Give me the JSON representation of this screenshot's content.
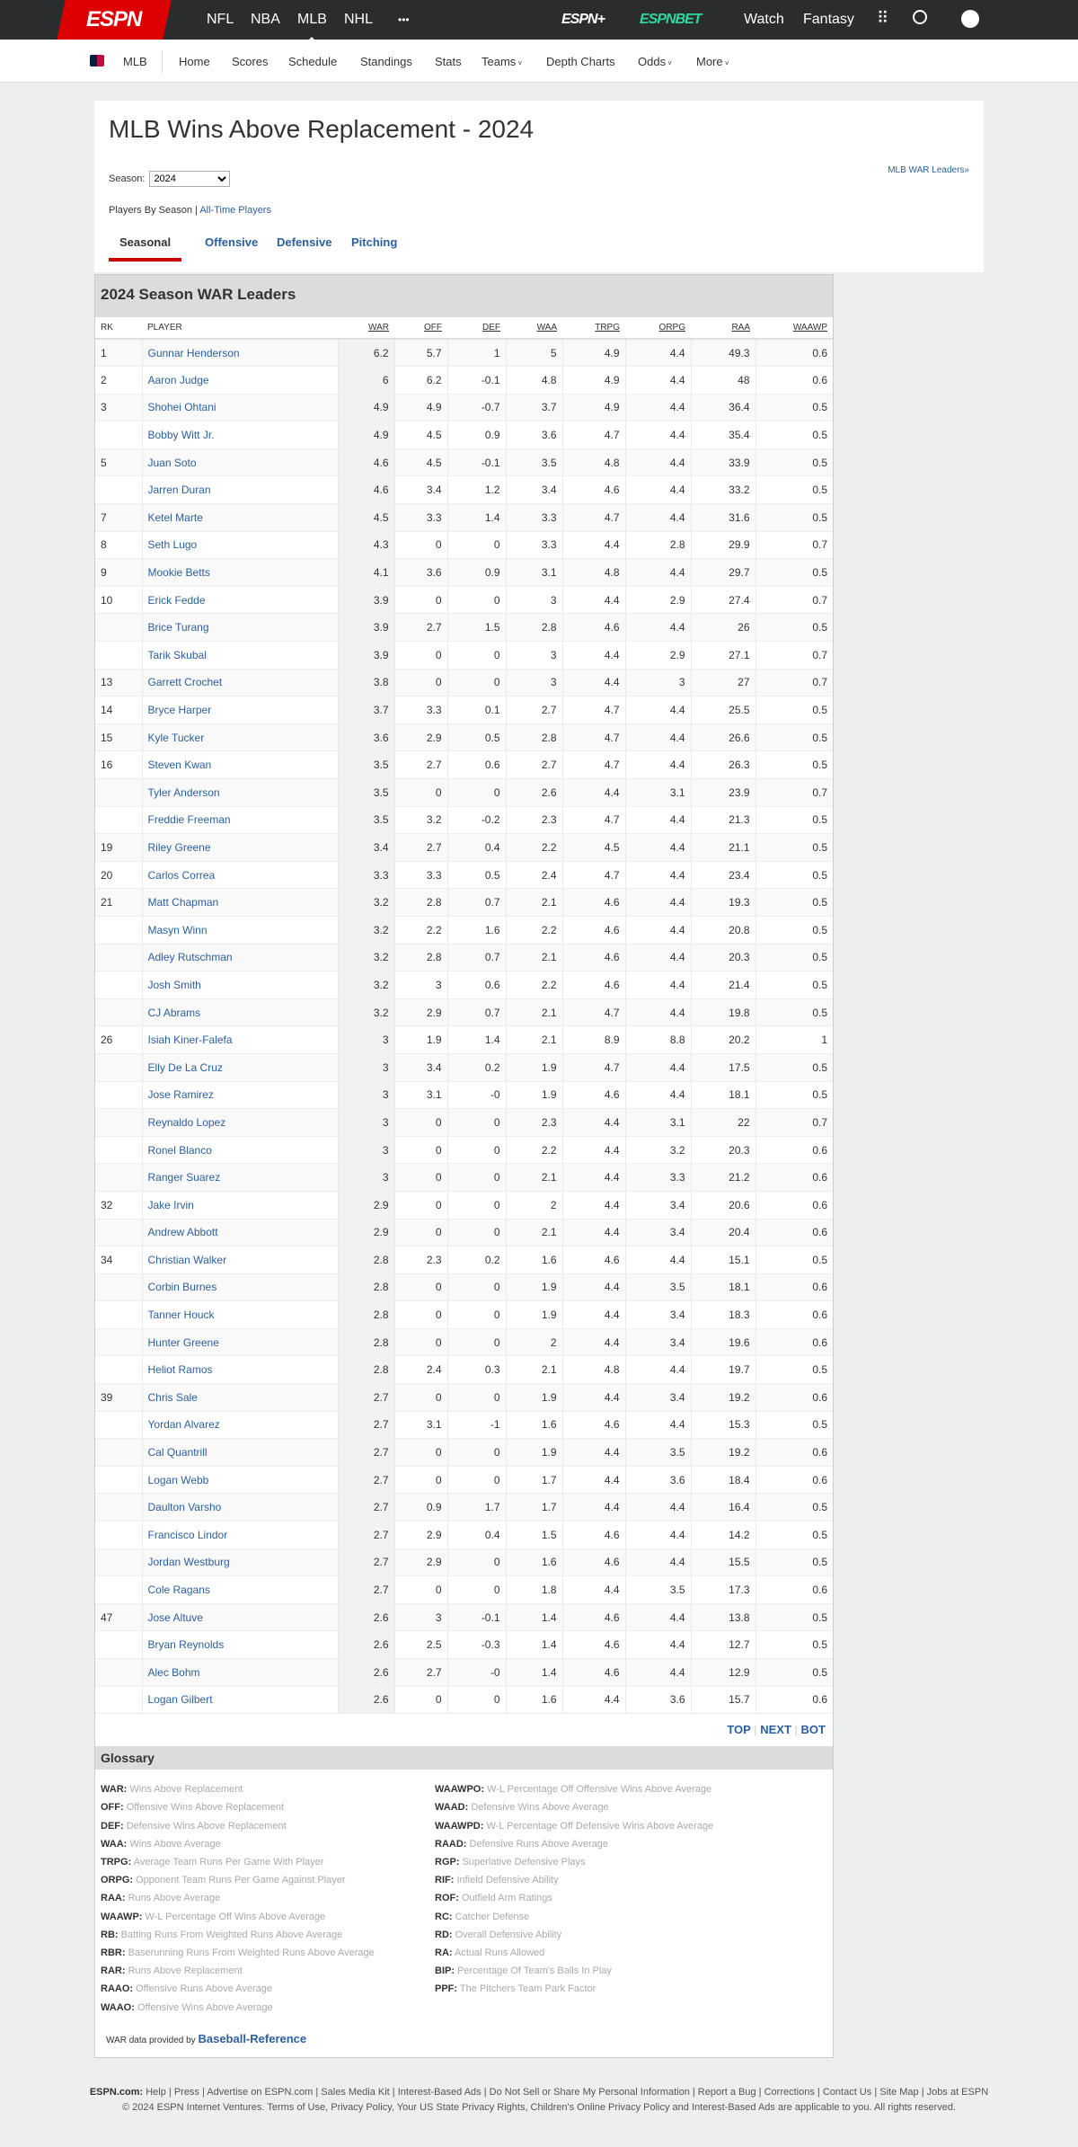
{
  "topnav": {
    "logo": "ESPN",
    "items": [
      "NFL",
      "NBA",
      "MLB",
      "NHL"
    ],
    "more": "•••",
    "espn_plus": "ESPN+",
    "espn_bet": "ESPNBET",
    "watch": "Watch",
    "fantasy": "Fantasy"
  },
  "subnav": {
    "league": "MLB",
    "items": [
      "Home",
      "Scores",
      "Schedule",
      "Standings",
      "Stats"
    ],
    "teams": "Teams",
    "depth": "Depth Charts",
    "odds": "Odds",
    "more": "More"
  },
  "page": {
    "title": "MLB Wins Above Replacement - 2024",
    "season_label": "Season:",
    "season_value": "2024",
    "war_leaders_link": "MLB WAR Leaders»",
    "players_by_season": "Players By Season",
    "sep": "|",
    "all_time": "All-Time Players",
    "tabs": [
      "Seasonal",
      "Offensive",
      "Defensive",
      "Pitching"
    ]
  },
  "table": {
    "title": "2024 Season WAR Leaders",
    "columns": [
      "RK",
      "PLAYER",
      "WAR",
      "OFF",
      "DEF",
      "WAA",
      "TRPG",
      "ORPG",
      "RAA",
      "WAAWP"
    ],
    "rows": [
      [
        "1",
        "Gunnar Henderson",
        "6.2",
        "5.7",
        "1",
        "5",
        "4.9",
        "4.4",
        "49.3",
        "0.6"
      ],
      [
        "2",
        "Aaron Judge",
        "6",
        "6.2",
        "-0.1",
        "4.8",
        "4.9",
        "4.4",
        "48",
        "0.6"
      ],
      [
        "3",
        "Shohei Ohtani",
        "4.9",
        "4.9",
        "-0.7",
        "3.7",
        "4.9",
        "4.4",
        "36.4",
        "0.5"
      ],
      [
        "",
        "Bobby Witt Jr.",
        "4.9",
        "4.5",
        "0.9",
        "3.6",
        "4.7",
        "4.4",
        "35.4",
        "0.5"
      ],
      [
        "5",
        "Juan Soto",
        "4.6",
        "4.5",
        "-0.1",
        "3.5",
        "4.8",
        "4.4",
        "33.9",
        "0.5"
      ],
      [
        "",
        "Jarren Duran",
        "4.6",
        "3.4",
        "1.2",
        "3.4",
        "4.6",
        "4.4",
        "33.2",
        "0.5"
      ],
      [
        "7",
        "Ketel Marte",
        "4.5",
        "3.3",
        "1.4",
        "3.3",
        "4.7",
        "4.4",
        "31.6",
        "0.5"
      ],
      [
        "8",
        "Seth Lugo",
        "4.3",
        "0",
        "0",
        "3.3",
        "4.4",
        "2.8",
        "29.9",
        "0.7"
      ],
      [
        "9",
        "Mookie Betts",
        "4.1",
        "3.6",
        "0.9",
        "3.1",
        "4.8",
        "4.4",
        "29.7",
        "0.5"
      ],
      [
        "10",
        "Erick Fedde",
        "3.9",
        "0",
        "0",
        "3",
        "4.4",
        "2.9",
        "27.4",
        "0.7"
      ],
      [
        "",
        "Brice Turang",
        "3.9",
        "2.7",
        "1.5",
        "2.8",
        "4.6",
        "4.4",
        "26",
        "0.5"
      ],
      [
        "",
        "Tarik Skubal",
        "3.9",
        "0",
        "0",
        "3",
        "4.4",
        "2.9",
        "27.1",
        "0.7"
      ],
      [
        "13",
        "Garrett Crochet",
        "3.8",
        "0",
        "0",
        "3",
        "4.4",
        "3",
        "27",
        "0.7"
      ],
      [
        "14",
        "Bryce Harper",
        "3.7",
        "3.3",
        "0.1",
        "2.7",
        "4.7",
        "4.4",
        "25.5",
        "0.5"
      ],
      [
        "15",
        "Kyle Tucker",
        "3.6",
        "2.9",
        "0.5",
        "2.8",
        "4.7",
        "4.4",
        "26.6",
        "0.5"
      ],
      [
        "16",
        "Steven Kwan",
        "3.5",
        "2.7",
        "0.6",
        "2.7",
        "4.7",
        "4.4",
        "26.3",
        "0.5"
      ],
      [
        "",
        "Tyler Anderson",
        "3.5",
        "0",
        "0",
        "2.6",
        "4.4",
        "3.1",
        "23.9",
        "0.7"
      ],
      [
        "",
        "Freddie Freeman",
        "3.5",
        "3.2",
        "-0.2",
        "2.3",
        "4.7",
        "4.4",
        "21.3",
        "0.5"
      ],
      [
        "19",
        "Riley Greene",
        "3.4",
        "2.7",
        "0.4",
        "2.2",
        "4.5",
        "4.4",
        "21.1",
        "0.5"
      ],
      [
        "20",
        "Carlos Correa",
        "3.3",
        "3.3",
        "0.5",
        "2.4",
        "4.7",
        "4.4",
        "23.4",
        "0.5"
      ],
      [
        "21",
        "Matt Chapman",
        "3.2",
        "2.8",
        "0.7",
        "2.1",
        "4.6",
        "4.4",
        "19.3",
        "0.5"
      ],
      [
        "",
        "Masyn Winn",
        "3.2",
        "2.2",
        "1.6",
        "2.2",
        "4.6",
        "4.4",
        "20.8",
        "0.5"
      ],
      [
        "",
        "Adley Rutschman",
        "3.2",
        "2.8",
        "0.7",
        "2.1",
        "4.6",
        "4.4",
        "20.3",
        "0.5"
      ],
      [
        "",
        "Josh Smith",
        "3.2",
        "3",
        "0.6",
        "2.2",
        "4.6",
        "4.4",
        "21.4",
        "0.5"
      ],
      [
        "",
        "CJ Abrams",
        "3.2",
        "2.9",
        "0.7",
        "2.1",
        "4.7",
        "4.4",
        "19.8",
        "0.5"
      ],
      [
        "26",
        "Isiah Kiner-Falefa",
        "3",
        "1.9",
        "1.4",
        "2.1",
        "8.9",
        "8.8",
        "20.2",
        "1"
      ],
      [
        "",
        "Elly De La Cruz",
        "3",
        "3.4",
        "0.2",
        "1.9",
        "4.7",
        "4.4",
        "17.5",
        "0.5"
      ],
      [
        "",
        "Jose Ramirez",
        "3",
        "3.1",
        "-0",
        "1.9",
        "4.6",
        "4.4",
        "18.1",
        "0.5"
      ],
      [
        "",
        "Reynaldo Lopez",
        "3",
        "0",
        "0",
        "2.3",
        "4.4",
        "3.1",
        "22",
        "0.7"
      ],
      [
        "",
        "Ronel Blanco",
        "3",
        "0",
        "0",
        "2.2",
        "4.4",
        "3.2",
        "20.3",
        "0.6"
      ],
      [
        "",
        "Ranger Suarez",
        "3",
        "0",
        "0",
        "2.1",
        "4.4",
        "3.3",
        "21.2",
        "0.6"
      ],
      [
        "32",
        "Jake Irvin",
        "2.9",
        "0",
        "0",
        "2",
        "4.4",
        "3.4",
        "20.6",
        "0.6"
      ],
      [
        "",
        "Andrew Abbott",
        "2.9",
        "0",
        "0",
        "2.1",
        "4.4",
        "3.4",
        "20.4",
        "0.6"
      ],
      [
        "34",
        "Christian Walker",
        "2.8",
        "2.3",
        "0.2",
        "1.6",
        "4.6",
        "4.4",
        "15.1",
        "0.5"
      ],
      [
        "",
        "Corbin Burnes",
        "2.8",
        "0",
        "0",
        "1.9",
        "4.4",
        "3.5",
        "18.1",
        "0.6"
      ],
      [
        "",
        "Tanner Houck",
        "2.8",
        "0",
        "0",
        "1.9",
        "4.4",
        "3.4",
        "18.3",
        "0.6"
      ],
      [
        "",
        "Hunter Greene",
        "2.8",
        "0",
        "0",
        "2",
        "4.4",
        "3.4",
        "19.6",
        "0.6"
      ],
      [
        "",
        "Heliot Ramos",
        "2.8",
        "2.4",
        "0.3",
        "2.1",
        "4.8",
        "4.4",
        "19.7",
        "0.5"
      ],
      [
        "39",
        "Chris Sale",
        "2.7",
        "0",
        "0",
        "1.9",
        "4.4",
        "3.4",
        "19.2",
        "0.6"
      ],
      [
        "",
        "Yordan Alvarez",
        "2.7",
        "3.1",
        "-1",
        "1.6",
        "4.6",
        "4.4",
        "15.3",
        "0.5"
      ],
      [
        "",
        "Cal Quantrill",
        "2.7",
        "0",
        "0",
        "1.9",
        "4.4",
        "3.5",
        "19.2",
        "0.6"
      ],
      [
        "",
        "Logan Webb",
        "2.7",
        "0",
        "0",
        "1.7",
        "4.4",
        "3.6",
        "18.4",
        "0.6"
      ],
      [
        "",
        "Daulton Varsho",
        "2.7",
        "0.9",
        "1.7",
        "1.7",
        "4.4",
        "4.4",
        "16.4",
        "0.5"
      ],
      [
        "",
        "Francisco Lindor",
        "2.7",
        "2.9",
        "0.4",
        "1.5",
        "4.6",
        "4.4",
        "14.2",
        "0.5"
      ],
      [
        "",
        "Jordan Westburg",
        "2.7",
        "2.9",
        "0",
        "1.6",
        "4.6",
        "4.4",
        "15.5",
        "0.5"
      ],
      [
        "",
        "Cole Ragans",
        "2.7",
        "0",
        "0",
        "1.8",
        "4.4",
        "3.5",
        "17.3",
        "0.6"
      ],
      [
        "47",
        "Jose Altuve",
        "2.6",
        "3",
        "-0.1",
        "1.4",
        "4.6",
        "4.4",
        "13.8",
        "0.5"
      ],
      [
        "",
        "Bryan Reynolds",
        "2.6",
        "2.5",
        "-0.3",
        "1.4",
        "4.6",
        "4.4",
        "12.7",
        "0.5"
      ],
      [
        "",
        "Alec Bohm",
        "2.6",
        "2.7",
        "-0",
        "1.4",
        "4.6",
        "4.4",
        "12.9",
        "0.5"
      ],
      [
        "",
        "Logan Gilbert",
        "2.6",
        "0",
        "0",
        "1.6",
        "4.4",
        "3.6",
        "15.7",
        "0.6"
      ]
    ]
  },
  "pager": {
    "top": "TOP",
    "next": "NEXT",
    "bot": "BOT",
    "sep": "|"
  },
  "glossary": {
    "title": "Glossary",
    "left": [
      [
        "WAR:",
        "Wins Above Replacement"
      ],
      [
        "OFF:",
        "Offensive Wins Above Replacement"
      ],
      [
        "DEF:",
        "Defensive Wins Above Replacement"
      ],
      [
        "WAA:",
        "Wins Above Average"
      ],
      [
        "TRPG:",
        "Average Team Runs Per Game With Player"
      ],
      [
        "ORPG:",
        "Opponent Team Runs Per Game Against Player"
      ],
      [
        "RAA:",
        "Runs Above Average"
      ],
      [
        "WAAWP:",
        "W-L Percentage Off Wins Above Average"
      ],
      [
        "RB:",
        "Batting Runs From Weighted Runs Above Average"
      ],
      [
        "RBR:",
        "Baserunning Runs From Weighted Runs Above Average"
      ],
      [
        "RAR:",
        "Runs Above Replacement"
      ],
      [
        "RAAO:",
        "Offensive Runs Above Average"
      ],
      [
        "WAAO:",
        "Offensive Wins Above Average"
      ]
    ],
    "right": [
      [
        "WAAWPO:",
        "W-L Percentage Off Offensive Wins Above Average"
      ],
      [
        "WAAD:",
        "Defensive Wins Above Average"
      ],
      [
        "WAAWPD:",
        "W-L Percentage Off Defensive Wins Above Average"
      ],
      [
        "RAAD:",
        "Defensive Runs Above Average"
      ],
      [
        "RGP:",
        "Superlative Defensive Plays"
      ],
      [
        "RIF:",
        "Infield Defensive Ability"
      ],
      [
        "ROF:",
        "Outfield Arm Ratings"
      ],
      [
        "RC:",
        "Catcher Defense"
      ],
      [
        "RD:",
        "Overall Defensive Ability"
      ],
      [
        "RA:",
        "Actual Runs Allowed"
      ],
      [
        "BIP:",
        "Percentage Of Team's Balls In Play"
      ],
      [
        "PPF:",
        "The Pitchers Team Park Factor"
      ]
    ],
    "credit": "WAR data provided by",
    "credit_link": "Baseball-Reference"
  },
  "footer": {
    "label": "ESPN.com:",
    "links": [
      "Help",
      "Press",
      "Advertise on ESPN.com",
      "Sales Media Kit",
      "Interest-Based Ads",
      "Do Not Sell or Share My Personal Information",
      "Report a Bug",
      "Corrections",
      "Contact Us",
      "Site Map",
      "Jobs at ESPN"
    ],
    "copyright": "© 2024 ESPN Internet Ventures. Terms of Use, Privacy Policy, Your US State Privacy Rights, Children's Online Privacy Policy and Interest-Based Ads are applicable to you. All rights reserved."
  }
}
